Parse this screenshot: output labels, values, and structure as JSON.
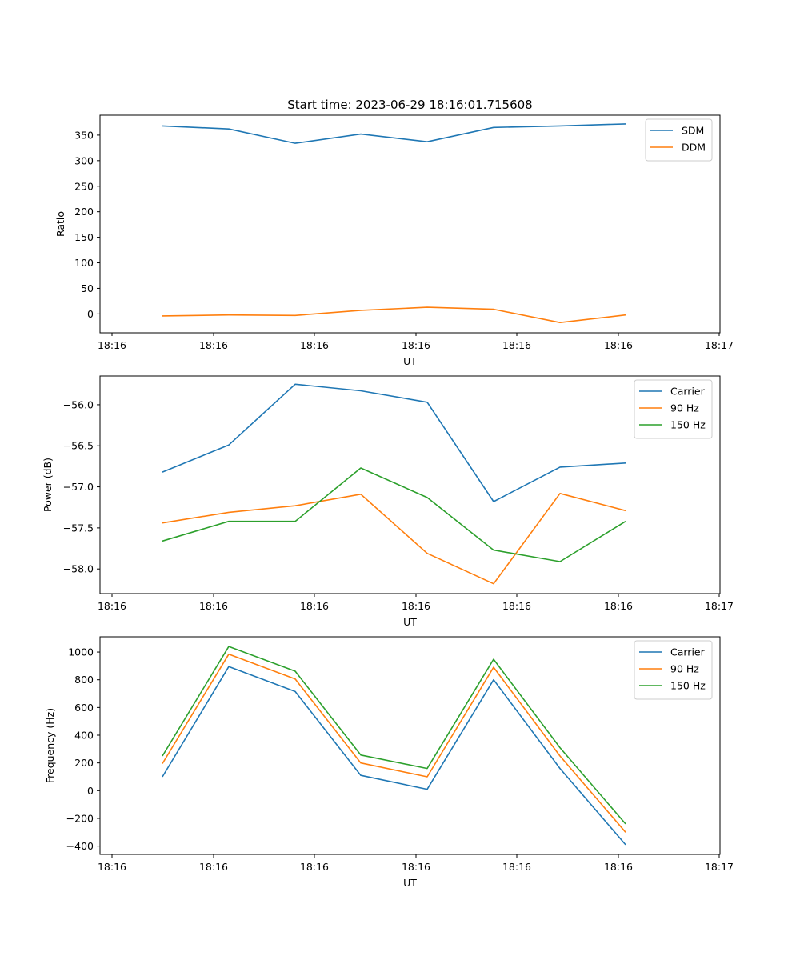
{
  "title": "Start time: 2023-06-29 18:16:01.715608",
  "colors": {
    "blue": "#1f77b4",
    "orange": "#ff7f0e",
    "green": "#2ca02c"
  },
  "chart_data": [
    {
      "type": "line",
      "xlabel": "UT",
      "ylabel": "Ratio",
      "x_tick_labels": [
        "18:16",
        "18:16",
        "18:16",
        "18:16",
        "18:16",
        "18:16",
        "18:16",
        "18:17"
      ],
      "y_ticks": [
        0,
        50,
        100,
        150,
        200,
        250,
        300,
        350
      ],
      "ylim": [
        -37,
        389
      ],
      "legend_position": "top-right",
      "series": [
        {
          "name": "SDM",
          "color": "#1f77b4",
          "values": [
            368,
            362,
            334,
            352,
            337,
            365,
            368,
            372
          ]
        },
        {
          "name": "DDM",
          "color": "#ff7f0e",
          "values": [
            -4,
            -2,
            -3,
            7,
            13,
            9,
            -17,
            -2
          ]
        }
      ]
    },
    {
      "type": "line",
      "xlabel": "UT",
      "ylabel": "Power (dB)",
      "x_tick_labels": [
        "18:16",
        "18:16",
        "18:16",
        "18:16",
        "18:16",
        "18:16",
        "18:16",
        "18:17"
      ],
      "y_ticks": [
        -58.0,
        -57.5,
        -57.0,
        -56.5,
        -56.0
      ],
      "y_tick_labels": [
        "−58.0",
        "−57.5",
        "−57.0",
        "−56.5",
        "−56.0"
      ],
      "ylim": [
        -58.3,
        -55.65
      ],
      "legend_position": "top-right",
      "series": [
        {
          "name": "Carrier",
          "color": "#1f77b4",
          "values": [
            -56.82,
            -56.49,
            -55.75,
            -55.83,
            -55.97,
            -57.18,
            -56.76,
            -56.71
          ]
        },
        {
          "name": "90 Hz",
          "color": "#ff7f0e",
          "values": [
            -57.44,
            -57.31,
            -57.23,
            -57.09,
            -57.81,
            -58.18,
            -57.08,
            -57.29
          ]
        },
        {
          "name": "150 Hz",
          "color": "#2ca02c",
          "values": [
            -57.66,
            -57.42,
            -57.42,
            -56.77,
            -57.13,
            -57.77,
            -57.91,
            -57.42
          ]
        }
      ]
    },
    {
      "type": "line",
      "xlabel": "UT",
      "ylabel": "Frequency (Hz)",
      "x_tick_labels": [
        "18:16",
        "18:16",
        "18:16",
        "18:16",
        "18:16",
        "18:16",
        "18:16",
        "18:17"
      ],
      "y_ticks": [
        -400,
        -200,
        0,
        200,
        400,
        600,
        800,
        1000
      ],
      "y_tick_labels": [
        "−400",
        "−200",
        "0",
        "200",
        "400",
        "600",
        "800",
        "1000"
      ],
      "ylim": [
        -460,
        1110
      ],
      "legend_position": "top-right",
      "series": [
        {
          "name": "Carrier",
          "color": "#1f77b4",
          "values": [
            100,
            895,
            715,
            110,
            10,
            800,
            160,
            -390
          ]
        },
        {
          "name": "90 Hz",
          "color": "#ff7f0e",
          "values": [
            195,
            985,
            805,
            200,
            100,
            890,
            250,
            -300
          ]
        },
        {
          "name": "150 Hz",
          "color": "#2ca02c",
          "values": [
            250,
            1040,
            862,
            257,
            160,
            948,
            310,
            -240
          ]
        }
      ]
    }
  ]
}
